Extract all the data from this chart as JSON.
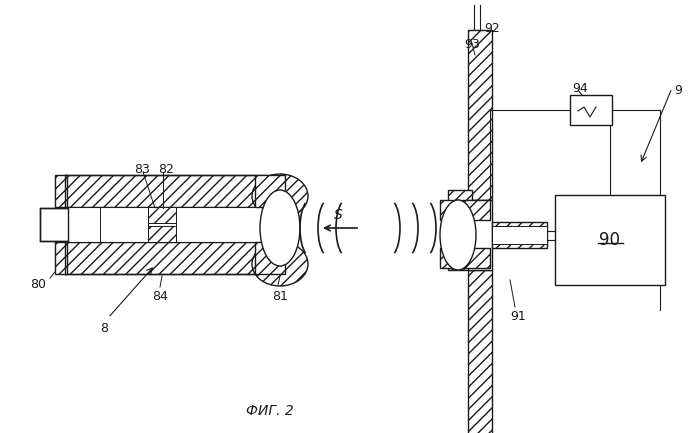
{
  "title": "ФИГ. 2",
  "bg_color": "#ffffff",
  "line_color": "#1a1a1a",
  "fig_w": 7.0,
  "fig_h": 4.33,
  "dpi": 100
}
